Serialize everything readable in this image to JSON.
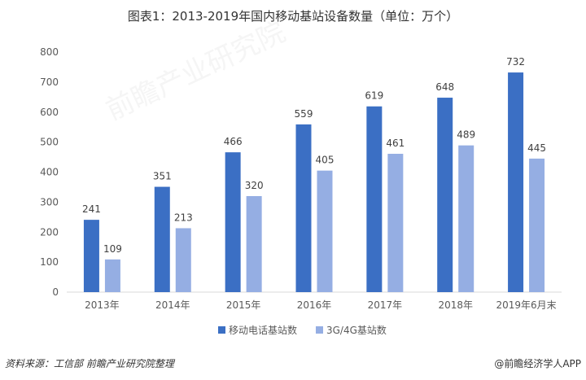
{
  "title": "图表1：2013-2019年国内移动基站设备数量（单位：万个）",
  "source": "资料来源：工信部 前瞻产业研究院整理",
  "brand": "@前瞻经济学人APP",
  "watermark": "前瞻产业研究院",
  "chart_data": {
    "type": "bar",
    "categories": [
      "2013年",
      "2014年",
      "2015年",
      "2016年",
      "2017年",
      "2018年",
      "2019年6月末"
    ],
    "series": [
      {
        "name": "移动电话基站数",
        "color": "#3B6FC4",
        "values": [
          241,
          351,
          466,
          559,
          619,
          648,
          732
        ]
      },
      {
        "name": "3G/4G基站数",
        "color": "#95AEE3",
        "values": [
          109,
          213,
          320,
          405,
          461,
          489,
          445
        ]
      }
    ],
    "ylim": [
      0,
      800
    ],
    "yticks": [
      0,
      100,
      200,
      300,
      400,
      500,
      600,
      700,
      800
    ],
    "grid": false,
    "legend": "bottom"
  }
}
